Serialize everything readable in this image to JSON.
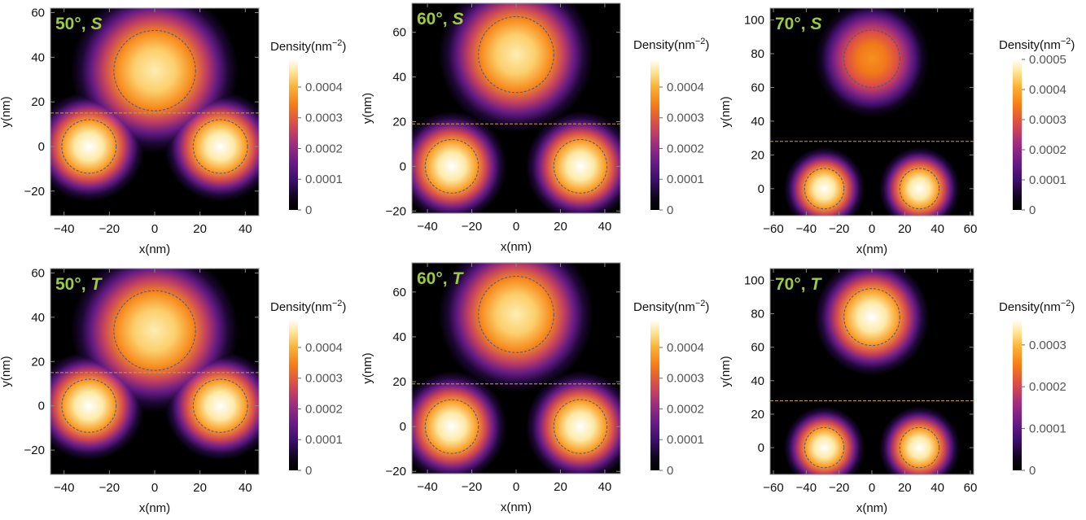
{
  "figure": {
    "colorbar_label": "Density(nm⁻²)",
    "xlabel": "x(nm)",
    "ylabel": "y(nm)"
  },
  "colors": {
    "panel_label": "#9ccc3c",
    "guide_line": "#c8a040",
    "circle_line": "#555577"
  },
  "chart_data": [
    {
      "type": "heatmap",
      "title": "50°, S",
      "title_angle": "50°",
      "title_state": "S",
      "xlabel": "x(nm)",
      "ylabel": "y(nm)",
      "colorbar_label": "Density(nm⁻²)",
      "xlim": [
        -46,
        46
      ],
      "ylim": [
        -31,
        62
      ],
      "xticks": [
        -40,
        -20,
        0,
        20,
        40
      ],
      "yticks": [
        -20,
        0,
        20,
        40,
        60
      ],
      "cbar_range": [
        0,
        0.00049
      ],
      "cbar_ticks": [
        0,
        0.0001,
        0.0002,
        0.0003,
        0.0004
      ],
      "cbar_ticklabels": [
        "0",
        "0.0001",
        "0.0002",
        "0.0003",
        "0.0004"
      ],
      "divider_y": 15,
      "blobs": [
        {
          "x": 0,
          "y": 34,
          "r": 18,
          "peak": 0.00046
        },
        {
          "x": -29,
          "y": 0,
          "r": 12,
          "peak": 0.00049
        },
        {
          "x": 29,
          "y": 0,
          "r": 12,
          "peak": 0.00049
        }
      ]
    },
    {
      "type": "heatmap",
      "title": "60°, S",
      "title_angle": "60°",
      "title_state": "S",
      "xlabel": "x(nm)",
      "ylabel": "y(nm)",
      "colorbar_label": "Density(nm⁻²)",
      "xlim": [
        -47,
        47
      ],
      "ylim": [
        -21,
        73
      ],
      "xticks": [
        -40,
        -20,
        0,
        20,
        40
      ],
      "yticks": [
        -20,
        0,
        20,
        40,
        60
      ],
      "cbar_range": [
        0,
        0.00049
      ],
      "cbar_ticks": [
        0,
        0.0001,
        0.0002,
        0.0003,
        0.0004
      ],
      "cbar_ticklabels": [
        "0",
        "0.0001",
        "0.0002",
        "0.0003",
        "0.0004"
      ],
      "divider_y": 19,
      "blobs": [
        {
          "x": 0,
          "y": 50,
          "r": 17,
          "peak": 0.00046
        },
        {
          "x": -29,
          "y": 0,
          "r": 12,
          "peak": 0.00049
        },
        {
          "x": 29,
          "y": 0,
          "r": 12,
          "peak": 0.00049
        }
      ]
    },
    {
      "type": "heatmap",
      "title": "70°, S",
      "title_angle": "70°",
      "title_state": "S",
      "xlabel": "x(nm)",
      "ylabel": "y(nm)",
      "colorbar_label": "Density(nm⁻²)",
      "xlim": [
        -62,
        62
      ],
      "ylim": [
        -16,
        107
      ],
      "xticks": [
        -60,
        -40,
        -20,
        0,
        20,
        40,
        60
      ],
      "yticks": [
        0,
        20,
        40,
        60,
        80,
        100
      ],
      "cbar_range": [
        0,
        0.0005
      ],
      "cbar_ticks": [
        0,
        0.0001,
        0.0002,
        0.0003,
        0.0004,
        0.0005
      ],
      "cbar_ticklabels": [
        "0",
        "0.0001",
        "0.0002",
        "0.0003",
        "0.0004",
        "0.0005"
      ],
      "divider_y": 28,
      "blobs": [
        {
          "x": 0,
          "y": 77,
          "r": 17,
          "peak": 0.00037
        },
        {
          "x": -29,
          "y": 0,
          "r": 12,
          "peak": 0.0005
        },
        {
          "x": 29,
          "y": 0,
          "r": 12,
          "peak": 0.0005
        }
      ]
    },
    {
      "type": "heatmap",
      "title": "50°, T",
      "title_angle": "50°",
      "title_state": "T",
      "xlabel": "x(nm)",
      "ylabel": "y(nm)",
      "colorbar_label": "Density(nm⁻²)",
      "xlim": [
        -46,
        46
      ],
      "ylim": [
        -31,
        62
      ],
      "xticks": [
        -40,
        -20,
        0,
        20,
        40
      ],
      "yticks": [
        -20,
        0,
        20,
        40,
        60
      ],
      "cbar_range": [
        0,
        0.00049
      ],
      "cbar_ticks": [
        0,
        0.0001,
        0.0002,
        0.0003,
        0.0004
      ],
      "cbar_ticklabels": [
        "0",
        "0.0001",
        "0.0002",
        "0.0003",
        "0.0004"
      ],
      "divider_y": 15,
      "blobs": [
        {
          "x": 0,
          "y": 34,
          "r": 18,
          "peak": 0.00046
        },
        {
          "x": -29,
          "y": 0,
          "r": 12,
          "peak": 0.00049
        },
        {
          "x": 29,
          "y": 0,
          "r": 12,
          "peak": 0.00049
        }
      ]
    },
    {
      "type": "heatmap",
      "title": "60°, T",
      "title_angle": "60°",
      "title_state": "T",
      "xlabel": "x(nm)",
      "ylabel": "y(nm)",
      "colorbar_label": "Density(nm⁻²)",
      "xlim": [
        -47,
        47
      ],
      "ylim": [
        -21,
        73
      ],
      "xticks": [
        -40,
        -20,
        0,
        20,
        40
      ],
      "yticks": [
        -20,
        0,
        20,
        40,
        60
      ],
      "cbar_range": [
        0,
        0.00049
      ],
      "cbar_ticks": [
        0,
        0.0001,
        0.0002,
        0.0003,
        0.0004
      ],
      "cbar_ticklabels": [
        "0",
        "0.0001",
        "0.0002",
        "0.0003",
        "0.0004"
      ],
      "divider_y": 19,
      "blobs": [
        {
          "x": 0,
          "y": 50,
          "r": 17,
          "peak": 0.00046
        },
        {
          "x": -29,
          "y": 0,
          "r": 12,
          "peak": 0.00049
        },
        {
          "x": 29,
          "y": 0,
          "r": 12,
          "peak": 0.00049
        }
      ]
    },
    {
      "type": "heatmap",
      "title": "70°, T",
      "title_angle": "70°",
      "title_state": "T",
      "xlabel": "x(nm)",
      "ylabel": "y(nm)",
      "colorbar_label": "Density(nm⁻²)",
      "xlim": [
        -62,
        62
      ],
      "ylim": [
        -16,
        107
      ],
      "xticks": [
        -60,
        -40,
        -20,
        0,
        20,
        40,
        60
      ],
      "yticks": [
        0,
        20,
        40,
        60,
        80,
        100
      ],
      "cbar_range": [
        0,
        0.00036
      ],
      "cbar_ticks": [
        0,
        0.0001,
        0.0002,
        0.0003
      ],
      "cbar_ticklabels": [
        "0",
        "0.0001",
        "0.0002",
        "0.0003"
      ],
      "divider_y": 28,
      "blobs": [
        {
          "x": 0,
          "y": 78,
          "r": 17,
          "peak": 0.00036
        },
        {
          "x": -29,
          "y": 0,
          "r": 12,
          "peak": 0.00036
        },
        {
          "x": 29,
          "y": 0,
          "r": 12,
          "peak": 0.00036
        }
      ]
    }
  ]
}
